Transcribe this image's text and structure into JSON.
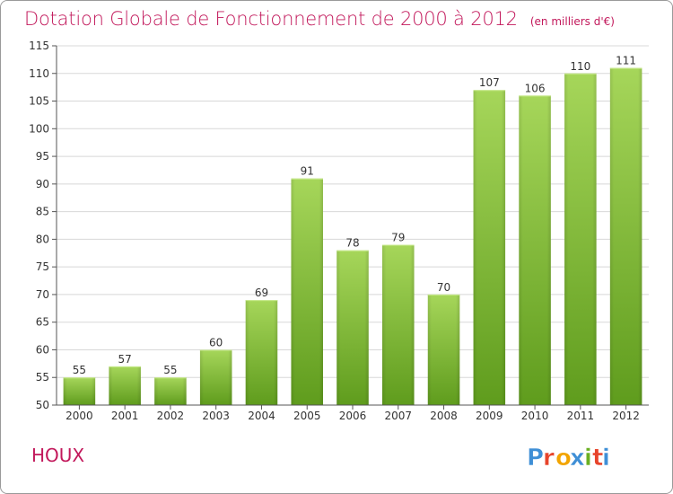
{
  "title": "Dotation Globale de Fonctionnement de 2000 à 2012",
  "subtitle": "(en milliers d'€)",
  "commune": "HOUX",
  "logo": {
    "text": "Proxiti",
    "letters": [
      "P",
      "r",
      "o",
      "x",
      "i",
      "t",
      "i"
    ],
    "colors": [
      "#3f8fd6",
      "#e7442b",
      "#f2a400",
      "#3f8fd6",
      "#6ab023",
      "#e7442b",
      "#3f8fd6"
    ]
  },
  "colors": {
    "title": "#c2185b",
    "bar_top": "#a6d65a",
    "bar_bottom": "#5f9c1d",
    "grid": "#d8d8d8",
    "axis": "#555555",
    "text": "#333333"
  },
  "chart_data": {
    "type": "bar",
    "title": "Dotation Globale de Fonctionnement de 2000 à 2012",
    "subtitle": "(en milliers d'€)",
    "categories": [
      "2000",
      "2001",
      "2002",
      "2003",
      "2004",
      "2005",
      "2006",
      "2007",
      "2008",
      "2009",
      "2010",
      "2011",
      "2012"
    ],
    "values": [
      55,
      57,
      55,
      60,
      69,
      91,
      78,
      79,
      70,
      107,
      106,
      110,
      111
    ],
    "ylim": [
      50,
      115
    ],
    "yticks": [
      50,
      55,
      60,
      65,
      70,
      75,
      80,
      85,
      90,
      95,
      100,
      105,
      110,
      115
    ],
    "grid": true,
    "data_labels": true,
    "legend": "none"
  }
}
